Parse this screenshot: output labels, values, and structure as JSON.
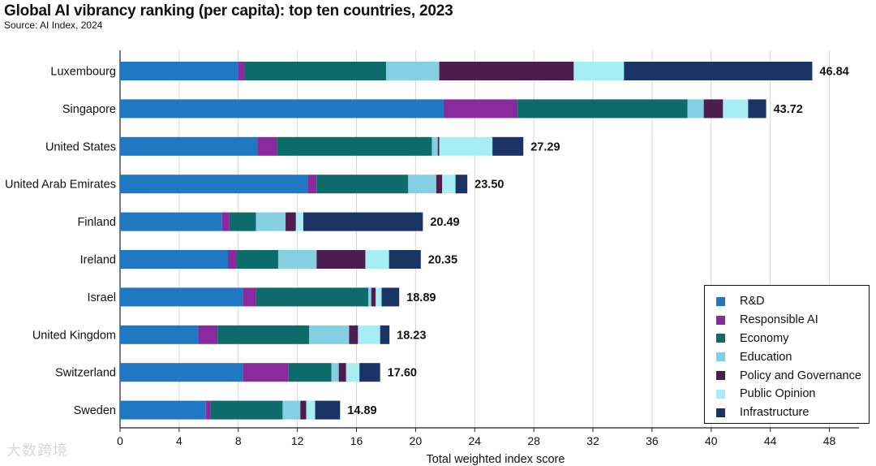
{
  "title": "Global AI vibrancy ranking (per capita): top ten countries, 2023",
  "source": "Source: AI Index, 2024",
  "watermark": "大数跨境",
  "chart_data": {
    "type": "bar",
    "orientation": "horizontal",
    "stacked": true,
    "title": "Global AI vibrancy ranking (per capita): top ten countries, 2023",
    "xlabel": "Total weighted index score",
    "ylabel": "",
    "xlim": [
      0,
      50
    ],
    "xticks": [
      0,
      4,
      8,
      12,
      16,
      20,
      24,
      28,
      32,
      36,
      40,
      44,
      48
    ],
    "grid": "vertical",
    "legend_position": "bottom-right",
    "categories": [
      "Luxembourg",
      "Singapore",
      "United States",
      "United Arab Emirates",
      "Finland",
      "Ireland",
      "Israel",
      "United Kingdom",
      "Switzerland",
      "Sweden"
    ],
    "totals": [
      46.84,
      43.72,
      27.29,
      23.5,
      20.49,
      20.35,
      18.89,
      18.23,
      17.6,
      14.89
    ],
    "total_labels": [
      "46.84",
      "43.72",
      "27.29",
      "23.50",
      "20.49",
      "20.35",
      "18.89",
      "18.23",
      "17.60",
      "14.89"
    ],
    "series": [
      {
        "name": "R&D",
        "color": "#1f78c1",
        "values": [
          8.0,
          21.9,
          9.3,
          12.7,
          6.9,
          7.3,
          8.3,
          5.3,
          8.3,
          5.8
        ]
      },
      {
        "name": "Responsible AI",
        "color": "#8a2a9e",
        "values": [
          0.4,
          5.0,
          1.3,
          0.6,
          0.5,
          0.6,
          0.9,
          1.3,
          3.1,
          0.3
        ]
      },
      {
        "name": "Economy",
        "color": "#0e6b6b",
        "values": [
          9.6,
          11.5,
          10.5,
          6.2,
          1.8,
          2.8,
          7.6,
          6.2,
          2.9,
          4.9
        ]
      },
      {
        "name": "Education",
        "color": "#84cfe2",
        "values": [
          3.6,
          1.1,
          0.4,
          1.9,
          2.0,
          2.6,
          0.2,
          2.7,
          0.5,
          1.2
        ]
      },
      {
        "name": "Policy and Governance",
        "color": "#4e1d4f",
        "values": [
          9.1,
          1.3,
          0.1,
          0.4,
          0.7,
          3.3,
          0.3,
          0.6,
          0.5,
          0.4
        ]
      },
      {
        "name": "Public Opinion",
        "color": "#a6eef4",
        "values": [
          3.4,
          1.7,
          3.6,
          0.9,
          0.5,
          1.6,
          0.4,
          1.5,
          0.9,
          0.6
        ]
      },
      {
        "name": "Infrastructure",
        "color": "#1a3466",
        "values": [
          12.74,
          1.22,
          2.09,
          0.8,
          8.09,
          2.15,
          1.19,
          0.63,
          1.4,
          1.69
        ]
      }
    ]
  }
}
